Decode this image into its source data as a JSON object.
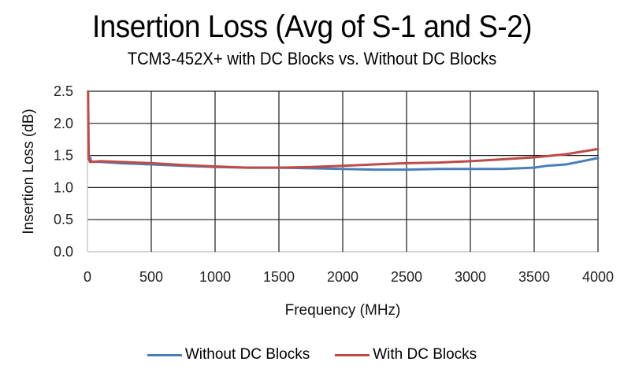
{
  "chart_data": {
    "type": "line",
    "title": "Insertion Loss (Avg of S-1 and S-2)",
    "subtitle": "TCM3-452X+ with DC Blocks vs. Without DC Blocks",
    "xlabel": "Frequency (MHz)",
    "ylabel": "Insertion Loss (dB)",
    "xlim": [
      0,
      4000
    ],
    "ylim": [
      0,
      2.5
    ],
    "xticks": [
      "0",
      "500",
      "1000",
      "1500",
      "2000",
      "2500",
      "3000",
      "3500",
      "4000"
    ],
    "yticks": [
      "0.0",
      "0.5",
      "1.0",
      "1.5",
      "2.0",
      "2.5"
    ],
    "xtick_values": [
      0,
      500,
      1000,
      1500,
      2000,
      2500,
      3000,
      3500,
      4000
    ],
    "ytick_values": [
      0,
      0.5,
      1.0,
      1.5,
      2.0,
      2.5
    ],
    "grid": true,
    "legend_position": "bottom",
    "series": [
      {
        "name": "Without DC Blocks",
        "color": "#4a7ebb",
        "x": [
          10,
          30,
          60,
          100,
          250,
          500,
          750,
          1000,
          1250,
          1500,
          1750,
          2000,
          2250,
          2500,
          2750,
          3000,
          3250,
          3500,
          3600,
          3750,
          3850,
          4000
        ],
        "y": [
          1.52,
          1.41,
          1.4,
          1.4,
          1.38,
          1.36,
          1.34,
          1.32,
          1.31,
          1.31,
          1.3,
          1.29,
          1.28,
          1.28,
          1.29,
          1.29,
          1.29,
          1.31,
          1.34,
          1.36,
          1.4,
          1.46
        ]
      },
      {
        "name": "With DC Blocks",
        "color": "#be4b48",
        "x": [
          5,
          10,
          20,
          40,
          100,
          250,
          500,
          750,
          1000,
          1250,
          1500,
          1750,
          2000,
          2250,
          2500,
          2750,
          3000,
          3250,
          3500,
          3750,
          4000
        ],
        "y": [
          2.5,
          1.45,
          1.4,
          1.4,
          1.41,
          1.4,
          1.38,
          1.35,
          1.33,
          1.31,
          1.31,
          1.32,
          1.34,
          1.36,
          1.38,
          1.39,
          1.41,
          1.44,
          1.47,
          1.52,
          1.6
        ]
      }
    ]
  }
}
